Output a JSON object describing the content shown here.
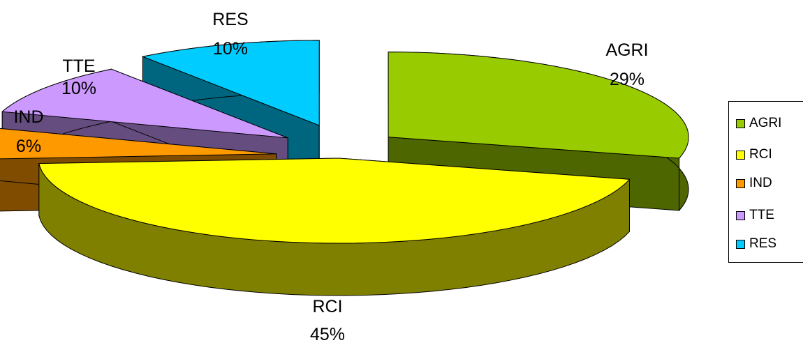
{
  "chart_data": {
    "type": "pie",
    "title": "",
    "style": "3d-exploded",
    "categories": [
      "AGRI",
      "RCI",
      "IND",
      "TTE",
      "RES"
    ],
    "values": [
      29,
      45,
      6,
      10,
      10
    ],
    "labels": [
      "29%",
      "45%",
      "6%",
      "10%",
      "10%"
    ],
    "colors": {
      "AGRI": "#99cc00",
      "RCI": "#ffff00",
      "IND": "#ff9900",
      "TTE": "#cc99ff",
      "RES": "#00ccff"
    },
    "side_colors": {
      "AGRI": "#4d6600",
      "RCI": "#808000",
      "IND": "#804c00",
      "TTE": "#664d80",
      "RES": "#006680"
    },
    "legend": {
      "position": "right",
      "items": [
        "AGRI",
        "RCI",
        "IND",
        "TTE",
        "RES"
      ]
    }
  }
}
